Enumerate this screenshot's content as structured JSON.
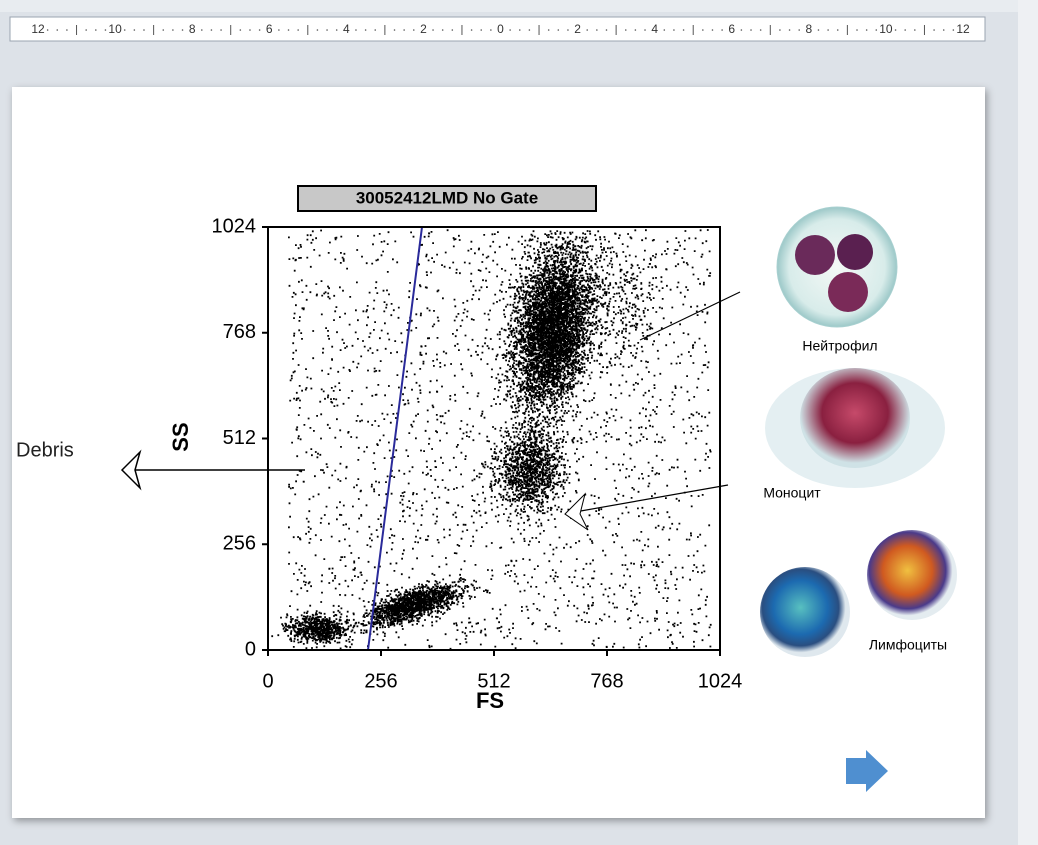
{
  "ruler": {
    "labels": [
      "12",
      "10",
      "8",
      "6",
      "4",
      "2",
      "0",
      "2",
      "4",
      "6",
      "8",
      "10",
      "12"
    ]
  },
  "plot": {
    "title": "30052412LMD No Gate",
    "x_label": "FS",
    "y_label": "SS",
    "xticks": [
      0,
      256,
      512,
      768,
      1024
    ],
    "yticks": [
      0,
      256,
      512,
      768,
      1024
    ]
  },
  "annotations": {
    "debris": "Debris",
    "neutrophil": "Нейтрофил",
    "monocyte": "Моноцит",
    "lymphocytes": "Лимфоциты"
  }
}
